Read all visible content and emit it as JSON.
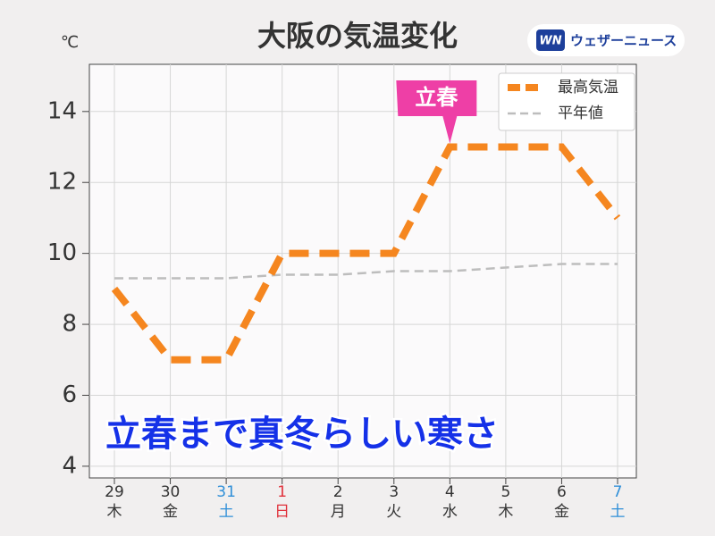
{
  "chart_data": {
    "type": "line",
    "title": "大阪の気温変化",
    "y_unit": "℃",
    "brand": {
      "mark": "WN",
      "name": "ウェザーニュース"
    },
    "categories": [
      "29",
      "30",
      "31",
      "1",
      "2",
      "3",
      "4",
      "5",
      "6",
      "7"
    ],
    "weekdays": [
      "木",
      "金",
      "土",
      "日",
      "月",
      "火",
      "水",
      "木",
      "金",
      "土"
    ],
    "category_colors": [
      "#333333",
      "#333333",
      "#2f8fd8",
      "#e0303a",
      "#333333",
      "#333333",
      "#333333",
      "#333333",
      "#333333",
      "#2f8fd8"
    ],
    "series": [
      {
        "name": "最高気温",
        "color": "#f5861f",
        "dash": "dashed-thick",
        "values": [
          9,
          7,
          7,
          10,
          10,
          10,
          13,
          13,
          13,
          11
        ]
      },
      {
        "name": "平年値",
        "color": "#bdbdbd",
        "dash": "dashed-thin",
        "values": [
          9.3,
          9.3,
          9.3,
          9.4,
          9.4,
          9.5,
          9.5,
          9.6,
          9.7,
          9.7
        ]
      }
    ],
    "ylim": [
      3.67,
      15.33
    ],
    "yticks": [
      4,
      6,
      8,
      10,
      12,
      14
    ],
    "grid": true,
    "legend": "upper right",
    "annotations": [
      {
        "text": "立春",
        "category_index": 6,
        "color": "#ee3fa6"
      }
    ],
    "banner": {
      "text": "立春まで真冬らしい寒さ",
      "color": "#1531e8"
    }
  }
}
